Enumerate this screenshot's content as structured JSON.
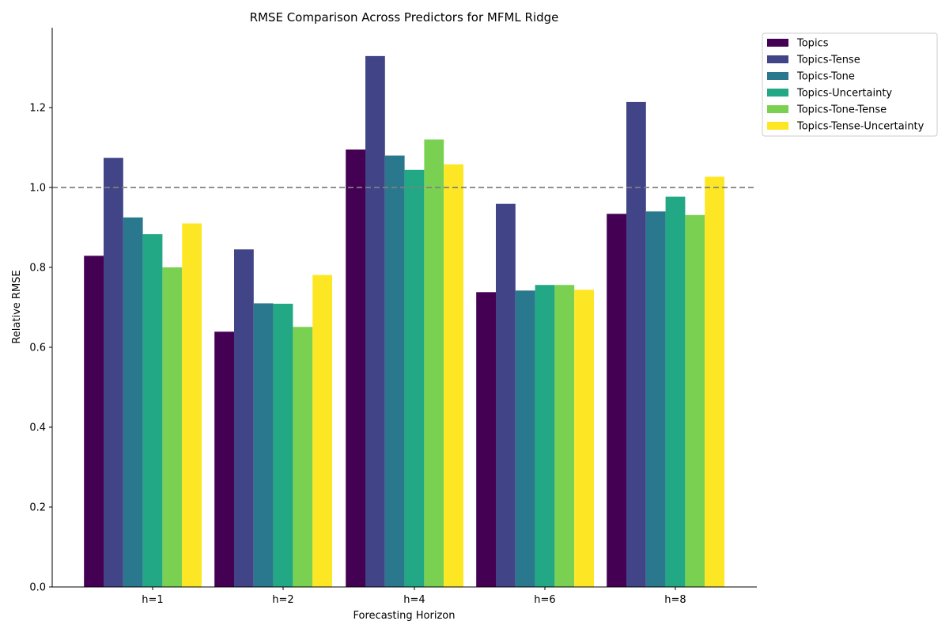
{
  "chart_data": {
    "type": "bar",
    "title": "RMSE Comparison Across Predictors for MFML Ridge",
    "xlabel": "Forecasting Horizon",
    "ylabel": "Relative RMSE",
    "categories": [
      "h=1",
      "h=2",
      "h=4",
      "h=6",
      "h=8"
    ],
    "ylim": [
      0,
      1.4
    ],
    "yticks": [
      "0.0",
      "0.2",
      "0.4",
      "0.6",
      "0.8",
      "1.0",
      "1.2"
    ],
    "reference_line": {
      "value": 1.0,
      "style": "dashed",
      "color": "#808080"
    },
    "grid": false,
    "legend_position": "upper-right-outside",
    "series": [
      {
        "name": "Topics",
        "color": "#440154",
        "values": [
          0.829,
          0.639,
          1.095,
          0.738,
          0.934
        ]
      },
      {
        "name": "Topics-Tense",
        "color": "#414487",
        "values": [
          1.074,
          0.845,
          1.329,
          0.959,
          1.214
        ]
      },
      {
        "name": "Topics-Tone",
        "color": "#2a788e",
        "values": [
          0.925,
          0.71,
          1.08,
          0.742,
          0.94
        ]
      },
      {
        "name": "Topics-Uncertainty",
        "color": "#22a884",
        "values": [
          0.883,
          0.709,
          1.044,
          0.756,
          0.977
        ]
      },
      {
        "name": "Topics-Tone-Tense",
        "color": "#7ad151",
        "values": [
          0.8,
          0.651,
          1.12,
          0.756,
          0.931
        ]
      },
      {
        "name": "Topics-Tense-Uncertainty",
        "color": "#fde725",
        "values": [
          0.91,
          0.781,
          1.058,
          0.744,
          1.027
        ]
      }
    ]
  }
}
